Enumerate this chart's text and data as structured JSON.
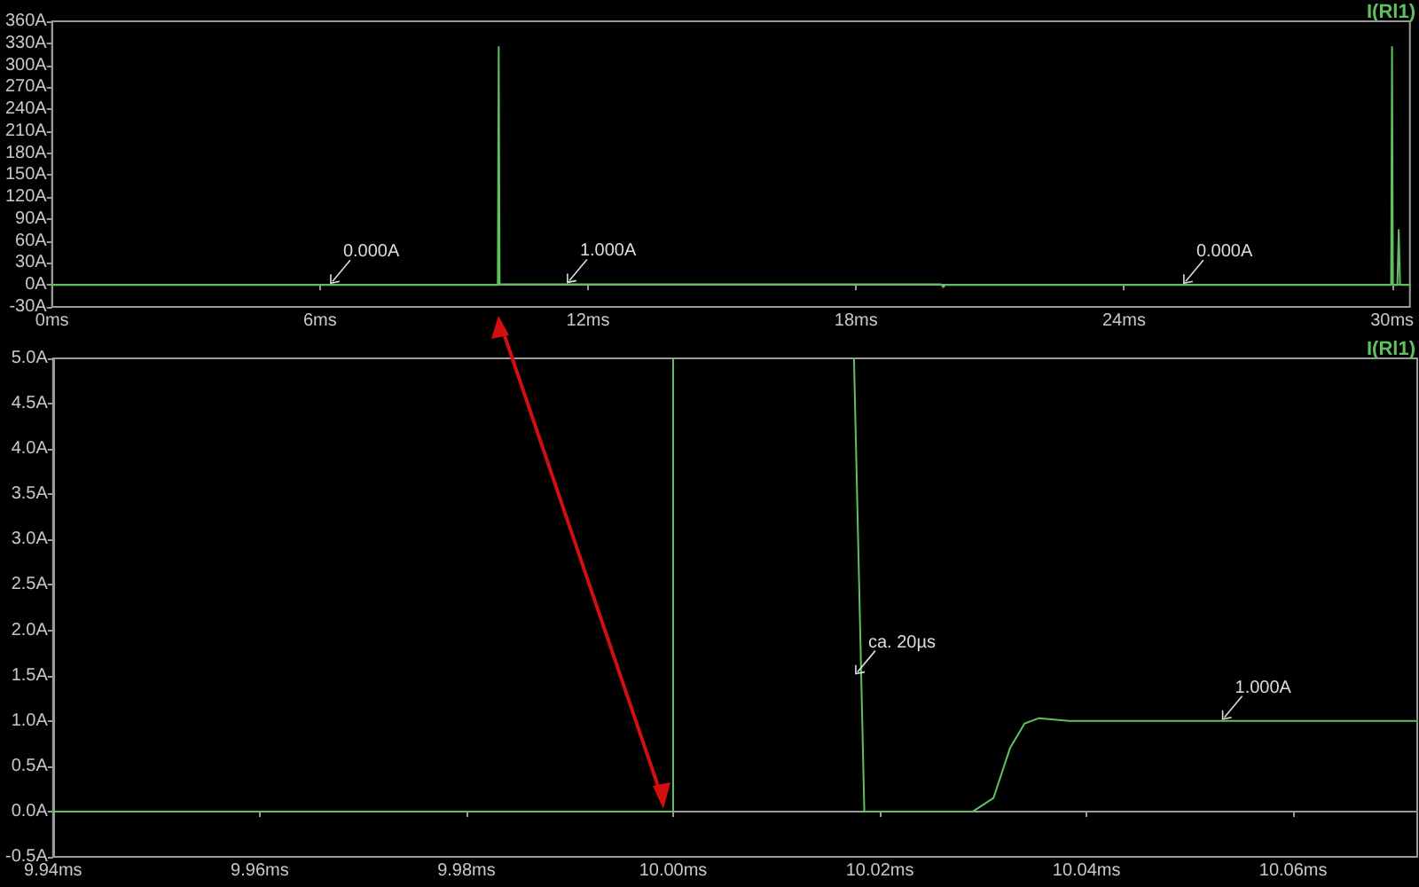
{
  "chart_data": [
    {
      "type": "line",
      "legend": "top right",
      "xlim": [
        0,
        30.4
      ],
      "xticks": [
        {
          "value": 0,
          "label": "0ms"
        },
        {
          "value": 6,
          "label": "6ms"
        },
        {
          "value": 12,
          "label": "12ms"
        },
        {
          "value": 18,
          "label": "18ms"
        },
        {
          "value": 24,
          "label": "24ms"
        },
        {
          "value": 30,
          "label": "30ms"
        }
      ],
      "ylim": [
        -30,
        360
      ],
      "yticks": [
        {
          "value": -30,
          "label": "-30A"
        },
        {
          "value": 0,
          "label": "0A"
        },
        {
          "value": 30,
          "label": "30A"
        },
        {
          "value": 60,
          "label": "60A"
        },
        {
          "value": 90,
          "label": "90A"
        },
        {
          "value": 120,
          "label": "120A"
        },
        {
          "value": 150,
          "label": "150A"
        },
        {
          "value": 180,
          "label": "180A"
        },
        {
          "value": 210,
          "label": "210A"
        },
        {
          "value": 240,
          "label": "240A"
        },
        {
          "value": 270,
          "label": "270A"
        },
        {
          "value": 300,
          "label": "300A"
        },
        {
          "value": 330,
          "label": "330A"
        },
        {
          "value": 360,
          "label": "360A"
        }
      ],
      "series": [
        {
          "name": "I(Rl1)",
          "color": "#5fc05f",
          "x": [
            0,
            9.98,
            10.0,
            10.02,
            19.9,
            19.95,
            20.0,
            29.98,
            30.0,
            30.02,
            30.12,
            30.15,
            30.18,
            30.4
          ],
          "values": [
            0,
            0,
            325,
            1,
            1,
            -3,
            0,
            0,
            325,
            0,
            0,
            75,
            0,
            0
          ]
        }
      ],
      "annotations": [
        {
          "text": "0.000A",
          "x": 6.2,
          "y": 0
        },
        {
          "text": "1.000A",
          "x": 11.5,
          "y": 1
        },
        {
          "text": "0.000A",
          "x": 25.3,
          "y": 0
        }
      ]
    },
    {
      "type": "line",
      "legend": "top right",
      "xlim": [
        9.94,
        10.072
      ],
      "xticks": [
        {
          "value": 9.94,
          "label": "9.94ms"
        },
        {
          "value": 9.96,
          "label": "9.96ms"
        },
        {
          "value": 9.98,
          "label": "9.98ms"
        },
        {
          "value": 10.0,
          "label": "10.00ms"
        },
        {
          "value": 10.02,
          "label": "10.02ms"
        },
        {
          "value": 10.04,
          "label": "10.04ms"
        },
        {
          "value": 10.06,
          "label": "10.06ms"
        }
      ],
      "ylim": [
        -0.5,
        5.0
      ],
      "yticks": [
        {
          "value": -0.5,
          "label": "-0.5A"
        },
        {
          "value": 0,
          "label": "0.0A"
        },
        {
          "value": 0.5,
          "label": "0.5A"
        },
        {
          "value": 1.0,
          "label": "1.0A"
        },
        {
          "value": 1.5,
          "label": "1.5A"
        },
        {
          "value": 2.0,
          "label": "2.0A"
        },
        {
          "value": 2.5,
          "label": "2.5A"
        },
        {
          "value": 3.0,
          "label": "3.0A"
        },
        {
          "value": 3.5,
          "label": "3.5A"
        },
        {
          "value": 4.0,
          "label": "4.0A"
        },
        {
          "value": 4.5,
          "label": "4.5A"
        },
        {
          "value": 5.0,
          "label": "5.0A"
        }
      ],
      "series": [
        {
          "name": "I(Rl1)",
          "color": "#5fc05f",
          "x": [
            9.94,
            10.0,
            10.0,
            10.009,
            10.0175,
            10.0185,
            10.029,
            10.031,
            10.0326,
            10.034,
            10.0354,
            10.0383,
            10.072
          ],
          "values": [
            0,
            0,
            5.0,
            null,
            5.0,
            0,
            0,
            0.15,
            0.7,
            0.97,
            1.03,
            1.0,
            1.0
          ]
        }
      ],
      "annotations": [
        {
          "text": "ca. 20µs",
          "x": 10.0175,
          "y": 1.5
        },
        {
          "text": "1.000A",
          "x": 10.053,
          "y": 1.0
        }
      ]
    }
  ]
}
